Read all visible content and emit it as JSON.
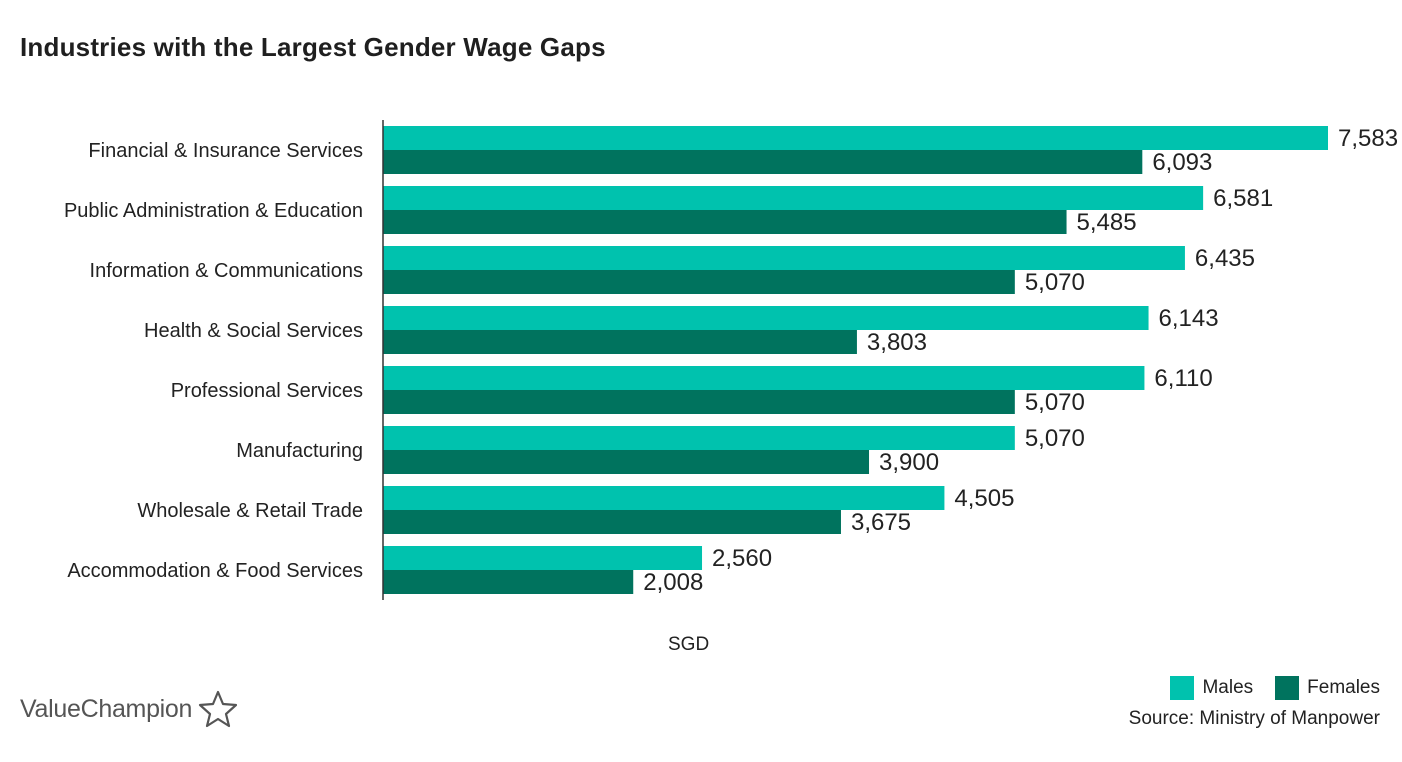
{
  "title": "Industries with the Largest Gender Wage Gaps",
  "brand": {
    "name": "ValueChampion",
    "logo_icon": "star-outline-icon"
  },
  "source": "Source: Ministry of Manpower",
  "colors": {
    "males": "#00C2AE",
    "females": "#00735E",
    "axis": "#333333"
  },
  "chart_data": {
    "type": "bar",
    "orientation": "horizontal",
    "title": "Industries with the Largest Gender Wage Gaps",
    "xlabel": "SGD",
    "ylabel": "",
    "xlim": [
      0,
      7583
    ],
    "grid": false,
    "legend": "bottom-right",
    "categories": [
      "Financial & Insurance Services",
      "Public Administration & Education",
      "Information & Communications",
      "Health & Social Services",
      "Professional Services",
      "Manufacturing",
      "Wholesale & Retail Trade",
      "Accommodation & Food Services"
    ],
    "series": [
      {
        "name": "Males",
        "values": [
          7583,
          6581,
          6435,
          6143,
          6110,
          5070,
          4505,
          2560
        ]
      },
      {
        "name": "Females",
        "values": [
          6093,
          5485,
          5070,
          3803,
          5070,
          3900,
          3675,
          2008
        ]
      }
    ]
  }
}
